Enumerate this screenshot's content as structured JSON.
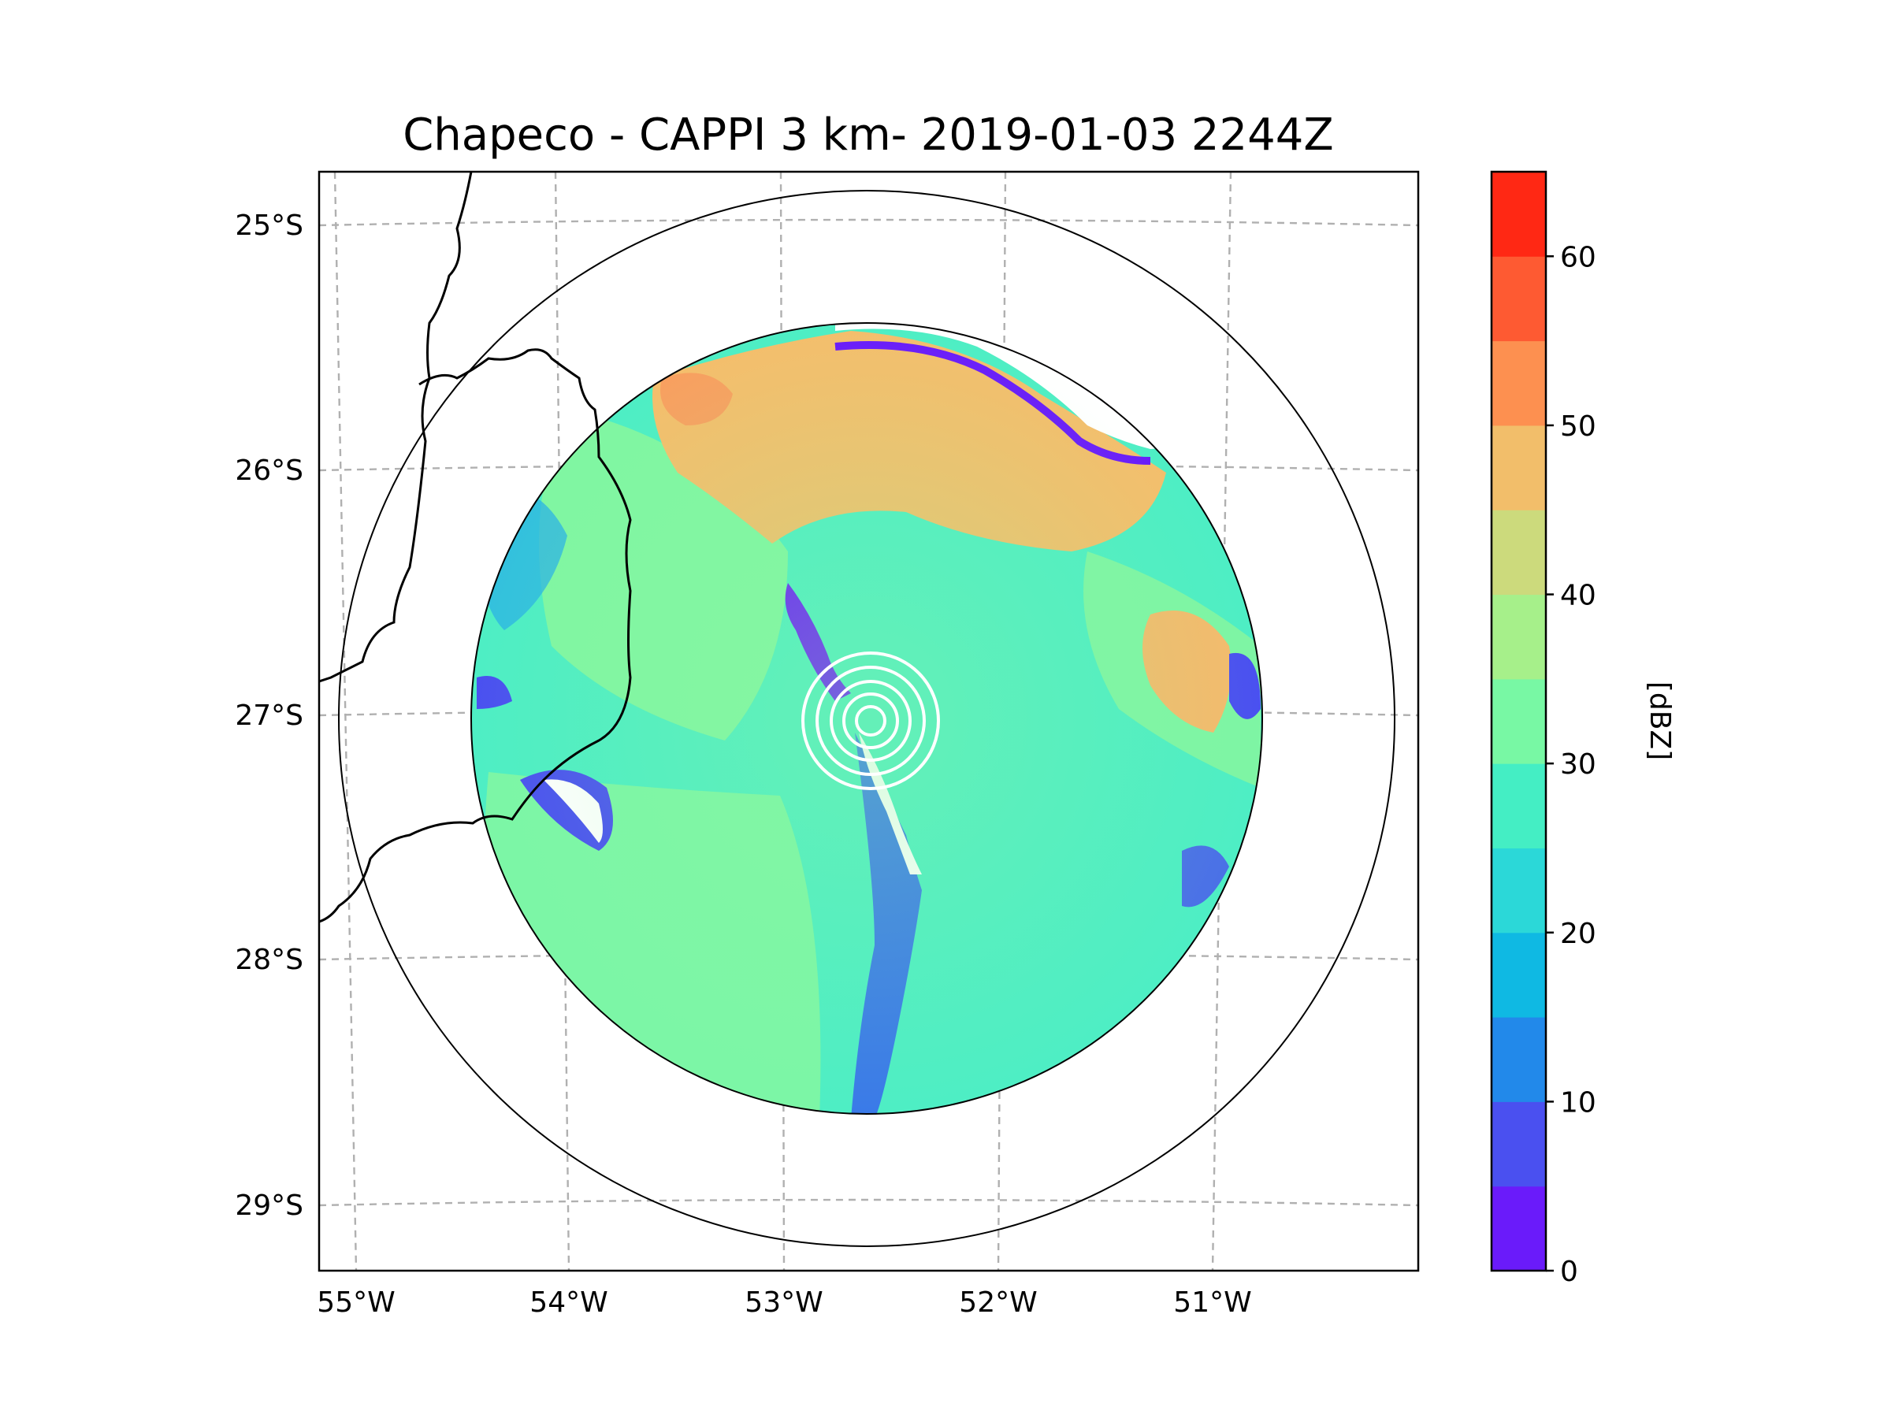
{
  "chart_data": {
    "type": "heatmap",
    "title": "Chapeco - CAPPI 3 km- 2019-01-03 2244Z",
    "x_ticks": [
      "55°W",
      "54°W",
      "53°W",
      "52°W",
      "51°W"
    ],
    "y_ticks": [
      "25°S",
      "26°S",
      "27°S",
      "28°S",
      "29°S"
    ],
    "grid": true,
    "radar_center": {
      "lon": -52.6,
      "lat": -27.02
    },
    "colorbar": {
      "label": "[dBZ]",
      "range": [
        0,
        65
      ],
      "step": 5,
      "tick_labels": [
        "0",
        "10",
        "20",
        "30",
        "40",
        "50",
        "60"
      ],
      "colors": [
        "#6a1bfa",
        "#4a50f0",
        "#2289ea",
        "#0fb9e3",
        "#2bd8d8",
        "#44eec4",
        "#78f8a4",
        "#a6f08a",
        "#ccda7c",
        "#f2be6a",
        "#fd9050",
        "#fe5a32",
        "#ff2814"
      ]
    },
    "dominant_reflectivity_dbz": [
      25,
      35
    ],
    "notable_features": [
      {
        "region": "north edge",
        "dbz_range": [
          40,
          50
        ]
      },
      {
        "region": "east edge",
        "dbz_range": [
          40,
          50
        ]
      },
      {
        "region": "radial line south of radar",
        "dbz_range": [
          0,
          10
        ]
      }
    ]
  }
}
